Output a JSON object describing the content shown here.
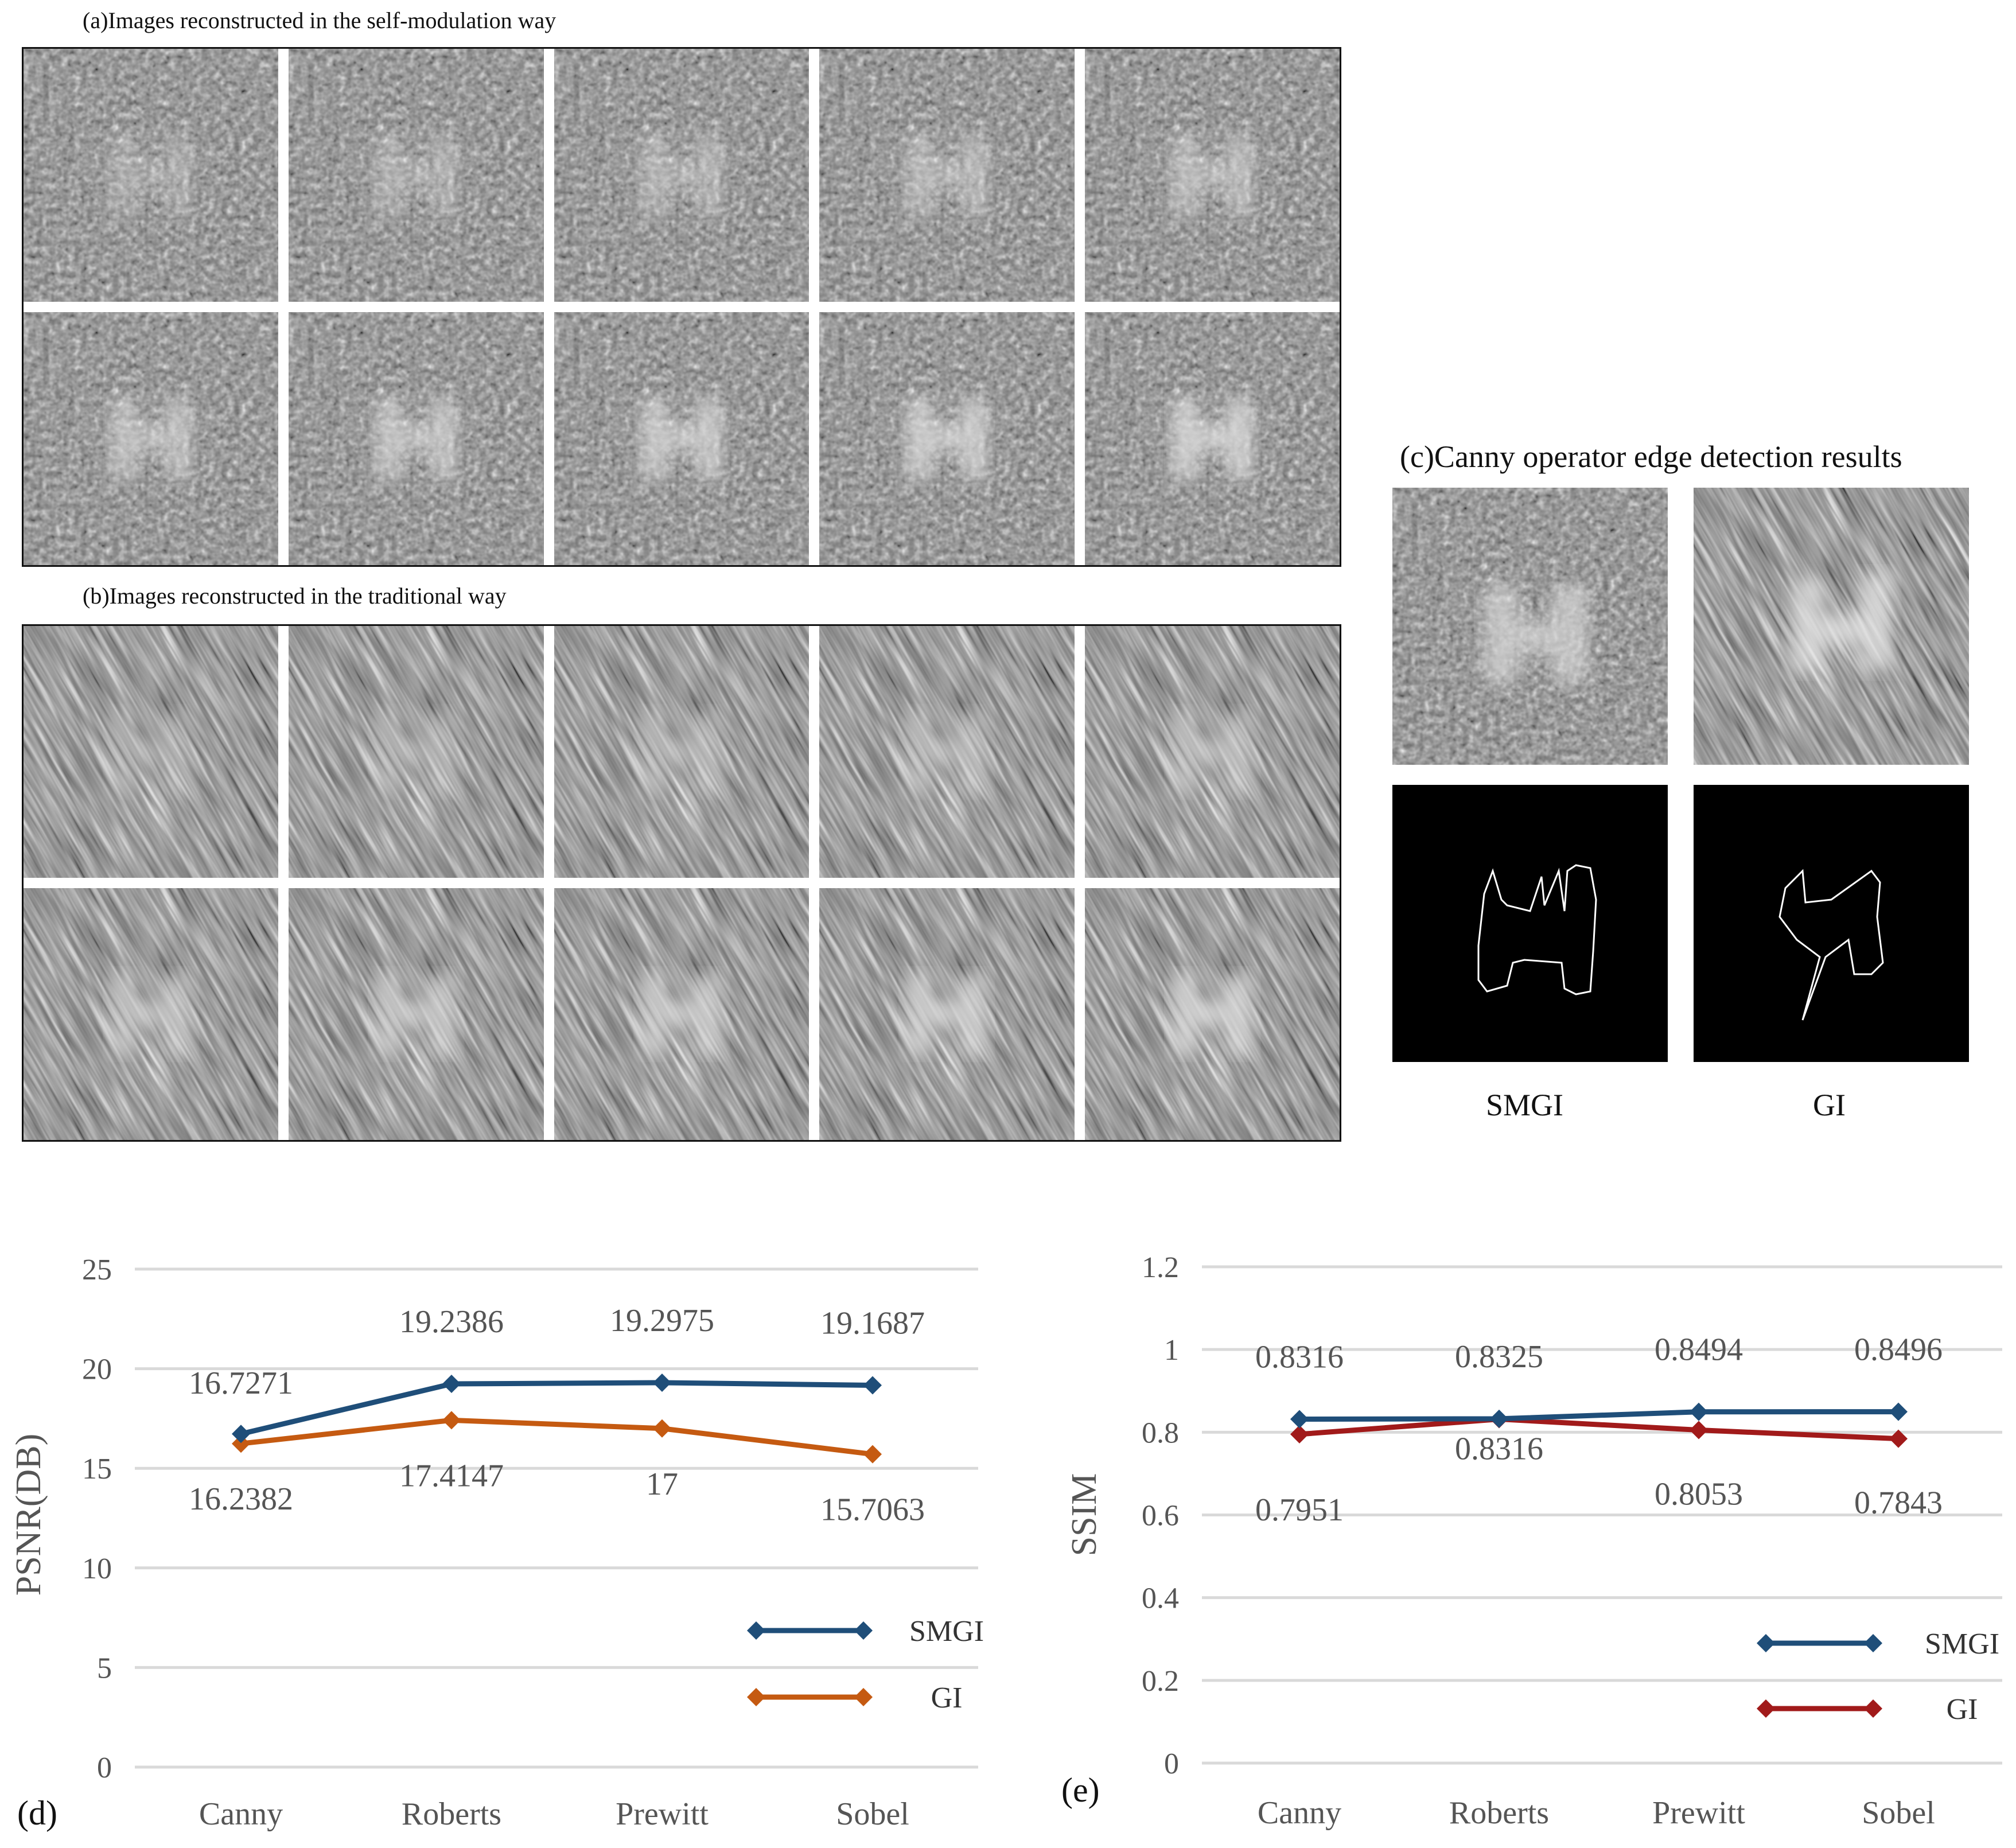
{
  "panel_a": {
    "caption": "(a)Images reconstructed in the self-modulation way"
  },
  "panel_b": {
    "caption": "(b)Images reconstructed in the traditional way"
  },
  "panel_c": {
    "caption": "(c)Canny operator edge detection results",
    "labels": [
      "SMGI",
      "GI"
    ]
  },
  "colors": {
    "smgi": "#1f4e79",
    "gi_psnr": "#c55a11",
    "gi_ssim": "#a11a1a",
    "grid": "#d9d9d9",
    "text": "#555555"
  },
  "chart_data": [
    {
      "panel_label": "(d)",
      "type": "line",
      "categories": [
        "Canny",
        "Roberts",
        "Prewitt",
        "Sobel"
      ],
      "series": [
        {
          "name": "SMGI",
          "values": [
            16.7271,
            19.2386,
            19.2975,
            19.1687
          ],
          "labels": [
            "16.7271",
            "19.2386",
            "19.2975",
            "19.1687"
          ]
        },
        {
          "name": "GI",
          "values": [
            16.2382,
            17.4147,
            17,
            15.7063
          ],
          "labels": [
            "16.2382",
            "17.4147",
            "17",
            "15.7063"
          ]
        }
      ],
      "ylabel": "PSNR(DB)",
      "ylim": [
        0,
        25
      ],
      "yticks": [
        "0",
        "5",
        "10",
        "15",
        "20",
        "25"
      ],
      "ytick_values": [
        0,
        5,
        10,
        15,
        20,
        25
      ],
      "grid": true,
      "legend": "bottom-right"
    },
    {
      "panel_label": "(e)",
      "type": "line",
      "categories": [
        "Canny",
        "Roberts",
        "Prewitt",
        "Sobel"
      ],
      "series": [
        {
          "name": "SMGI",
          "values": [
            0.8316,
            0.8325,
            0.8494,
            0.8496
          ],
          "labels": [
            "0.8316",
            "0.8325",
            "0.8494",
            "0.8496"
          ]
        },
        {
          "name": "GI",
          "values": [
            0.7951,
            0.8316,
            0.8053,
            0.7843
          ],
          "labels": [
            "0.7951",
            "0.8316",
            "0.8053",
            "0.7843"
          ]
        }
      ],
      "ylabel": "SSIM",
      "ylim": [
        0,
        1.2
      ],
      "yticks": [
        "0",
        "0.2",
        "0.4",
        "0.6",
        "0.8",
        "1",
        "1.2"
      ],
      "ytick_values": [
        0,
        0.2,
        0.4,
        0.6,
        0.8,
        1,
        1.2
      ],
      "grid": true,
      "legend": "bottom-right"
    }
  ]
}
